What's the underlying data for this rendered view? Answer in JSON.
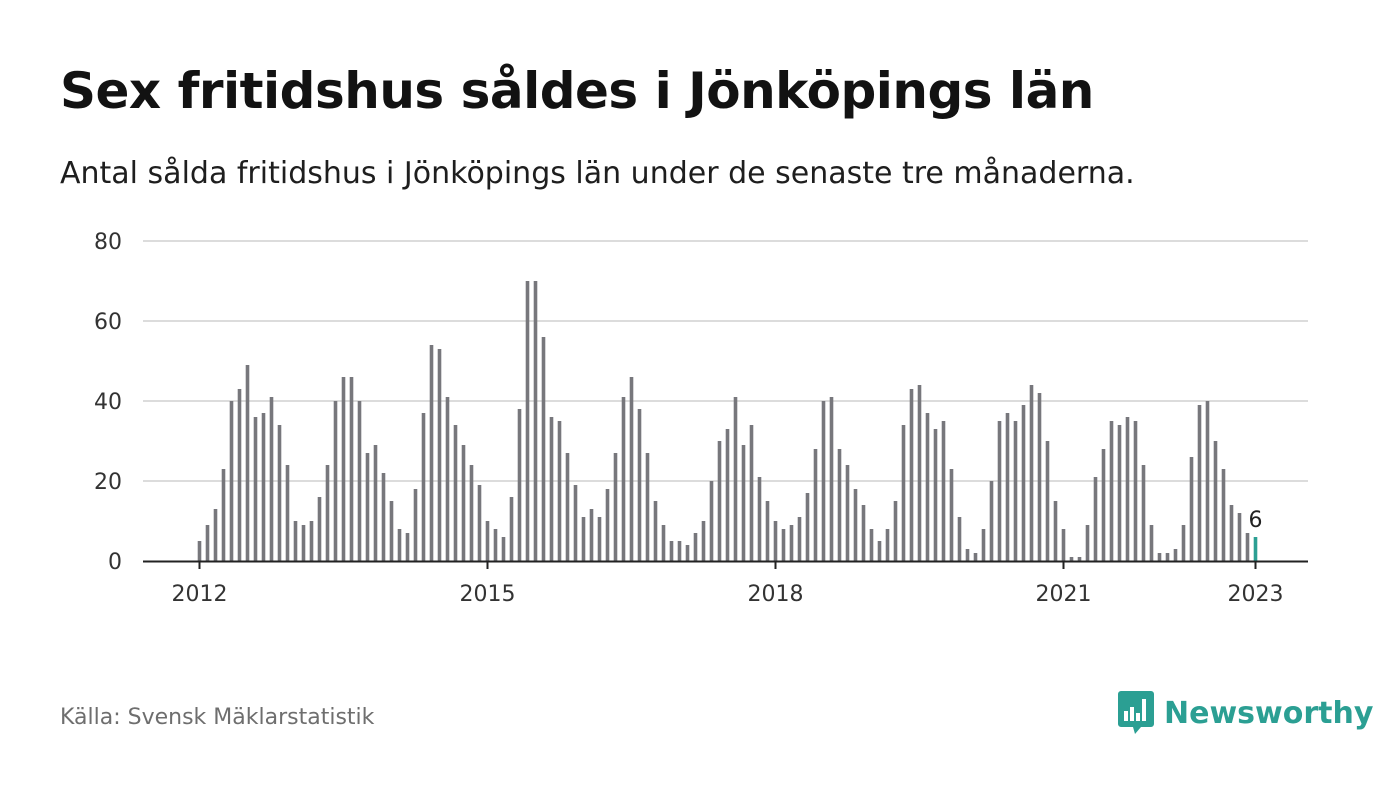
{
  "header": {
    "title": "Sex fritidshus såldes i Jönköpings län",
    "subtitle": "Antal sålda fritidshus i Jönköpings län under de senaste tre månaderna."
  },
  "footer": {
    "source": "Källa: Svensk Mäklarstatistik",
    "brand": "Newsworthy",
    "brand_icon": "bar-chart-speech-bubble-icon"
  },
  "colors": {
    "bar": "#77777c",
    "highlight": "#2b9f93",
    "grid": "#dcdcdc",
    "axis": "#222222",
    "brand": "#2b9f93"
  },
  "chart_data": {
    "type": "bar",
    "x_start": "2012-01",
    "x_interval": "month",
    "ylim": [
      0,
      80
    ],
    "yticks": [
      0,
      20,
      40,
      60,
      80
    ],
    "xtick_labels": [
      "2012",
      "2015",
      "2018",
      "2021",
      "2023"
    ],
    "grid": true,
    "highlight_index": 132,
    "highlight_label": "6",
    "values": [
      5,
      9,
      13,
      23,
      40,
      43,
      49,
      36,
      37,
      41,
      34,
      24,
      10,
      9,
      10,
      16,
      24,
      40,
      46,
      46,
      40,
      27,
      29,
      22,
      15,
      8,
      7,
      18,
      37,
      54,
      53,
      41,
      34,
      29,
      24,
      19,
      10,
      8,
      6,
      16,
      38,
      70,
      70,
      56,
      36,
      35,
      27,
      19,
      11,
      13,
      11,
      18,
      27,
      41,
      46,
      38,
      27,
      15,
      9,
      5,
      5,
      4,
      7,
      10,
      20,
      30,
      33,
      41,
      29,
      34,
      21,
      15,
      10,
      8,
      9,
      11,
      17,
      28,
      40,
      41,
      28,
      24,
      18,
      14,
      8,
      5,
      8,
      15,
      34,
      43,
      44,
      37,
      33,
      35,
      23,
      11,
      3,
      2,
      8,
      20,
      35,
      37,
      35,
      39,
      44,
      42,
      30,
      15,
      8,
      1,
      1,
      9,
      21,
      28,
      35,
      34,
      36,
      35,
      24,
      9,
      2,
      2,
      3,
      9,
      26,
      39,
      40,
      30,
      23,
      14,
      12,
      7,
      6
    ]
  }
}
